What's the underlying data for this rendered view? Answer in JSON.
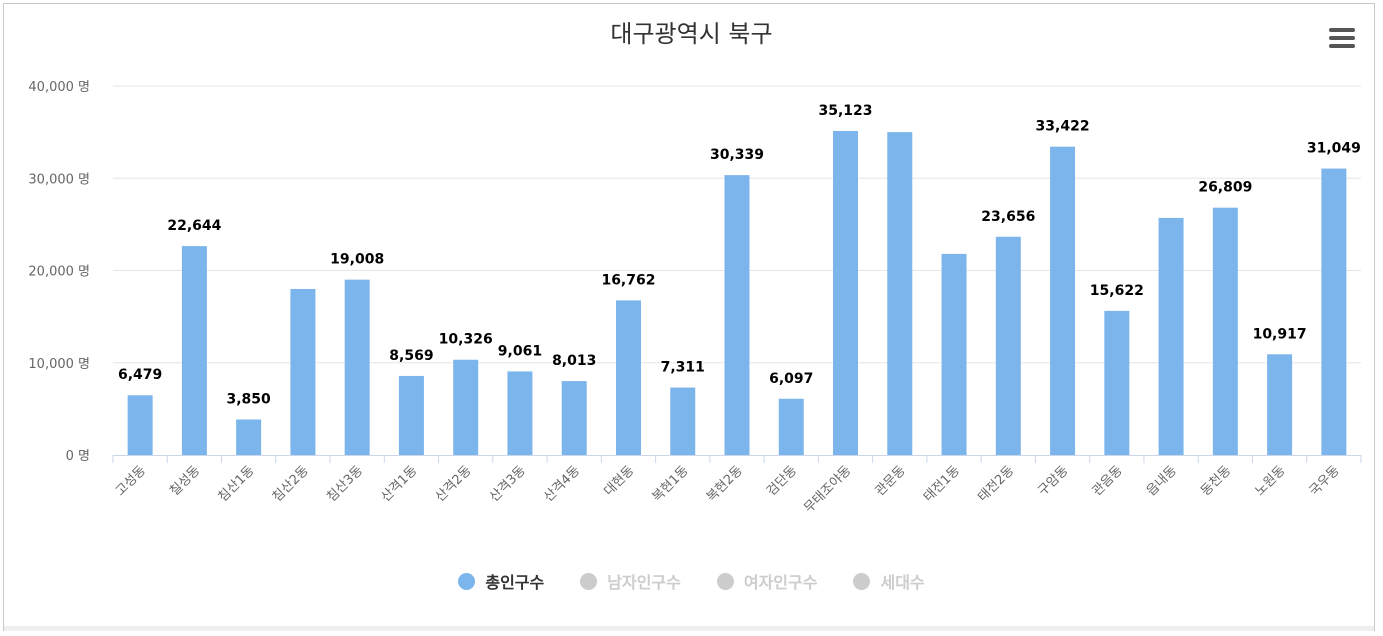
{
  "chart_data": {
    "type": "bar",
    "title": "대구광역시 북구",
    "xlabel": "",
    "ylabel": "",
    "ylim": [
      0,
      40000
    ],
    "y_ticks": [
      0,
      10000,
      20000,
      30000,
      40000
    ],
    "y_tick_labels": [
      "0 명",
      "10,000 명",
      "20,000 명",
      "30,000 명",
      "40,000 명"
    ],
    "categories": [
      "고성동",
      "칠성동",
      "침산1동",
      "침산2동",
      "침산3동",
      "산격1동",
      "산격2동",
      "산격3동",
      "산격4동",
      "대현동",
      "복현1동",
      "복현2동",
      "검단동",
      "무태조야동",
      "관문동",
      "태전1동",
      "태전2동",
      "구암동",
      "관음동",
      "읍내동",
      "동천동",
      "노원동",
      "국우동"
    ],
    "series": [
      {
        "name": "총인구수",
        "color": "#7cb5ec",
        "values": [
          6479,
          22644,
          3850,
          18000,
          19008,
          8569,
          10326,
          9061,
          8013,
          16762,
          7311,
          30339,
          6097,
          35123,
          35000,
          21800,
          23656,
          33422,
          15622,
          25700,
          26809,
          10917,
          31049
        ],
        "data_labels": [
          "6,479",
          "22,644",
          "3,850",
          "",
          "19,008",
          "8,569",
          "10,326",
          "9,061",
          "8,013",
          "16,762",
          "7,311",
          "30,339",
          "6,097",
          "35,123",
          "",
          "",
          "23,656",
          "33,422",
          "15,622",
          "",
          "26,809",
          "10,917",
          "31,049"
        ]
      }
    ],
    "grid": true
  },
  "legend": {
    "items": [
      {
        "label": "총인구수",
        "color": "#7cb5ec",
        "active": true
      },
      {
        "label": "남자인구수",
        "color": "#cccccc",
        "active": false
      },
      {
        "label": "여자인구수",
        "color": "#cccccc",
        "active": false
      },
      {
        "label": "세대수",
        "color": "#cccccc",
        "active": false
      }
    ]
  }
}
